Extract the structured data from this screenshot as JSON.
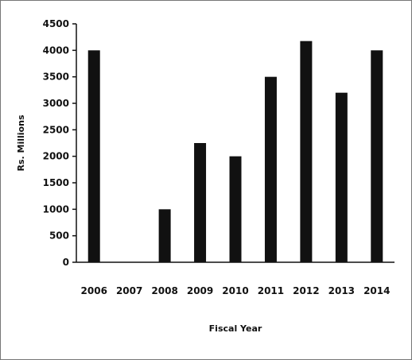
{
  "chart_data": {
    "type": "bar",
    "categories": [
      "2006",
      "2007",
      "2008",
      "2009",
      "2010",
      "2011",
      "2012",
      "2013",
      "2014"
    ],
    "values": [
      4000,
      0,
      1000,
      2250,
      2000,
      3500,
      4175,
      3200,
      4000
    ],
    "title": "",
    "xlabel": "Fiscal Year",
    "ylabel": "Rs. Millions",
    "ylim": [
      0,
      4500
    ],
    "yticks": [
      0,
      500,
      1000,
      1500,
      2000,
      2500,
      3000,
      3500,
      4000,
      4500
    ],
    "grid": false,
    "legend": "none",
    "bar_color": "#111111"
  }
}
